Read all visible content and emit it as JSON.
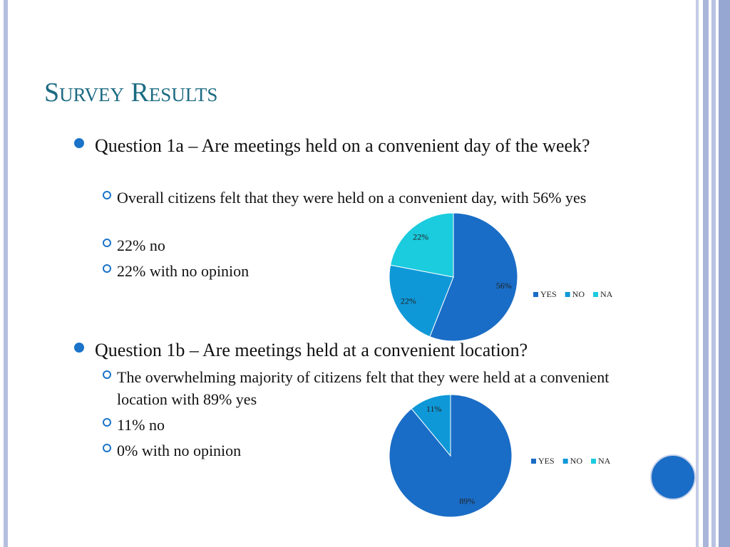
{
  "title": "Survey Results",
  "questions": [
    {
      "text": "Question 1a – Are meetings held on a convenient day of the week?",
      "points": [
        "Overall citizens felt that they were held on a convenient day, with 56% yes",
        "22% no",
        "22% with no opinion"
      ]
    },
    {
      "text": "Question 1b – Are meetings held at a convenient location?",
      "points": [
        "The overwhelming majority of  citizens felt that they were held  at a convenient location with 89% yes",
        "11% no",
        "0% with no opinion"
      ]
    }
  ],
  "chart_data": [
    {
      "type": "pie",
      "categories": [
        "YES",
        "NO",
        "NA"
      ],
      "values": [
        56,
        22,
        22
      ],
      "value_labels": [
        "56%",
        "22%",
        "22%"
      ],
      "colors": [
        "#1a6dc6",
        "#0f98d8",
        "#1bcbde"
      ],
      "legend": "right"
    },
    {
      "type": "pie",
      "categories": [
        "YES",
        "NO",
        "NA"
      ],
      "values": [
        89,
        11,
        0
      ],
      "value_labels": [
        "89%",
        "11%",
        null
      ],
      "colors": [
        "#1a6dc6",
        "#0f98d8",
        "#1bcbde"
      ],
      "legend": "right"
    }
  ]
}
